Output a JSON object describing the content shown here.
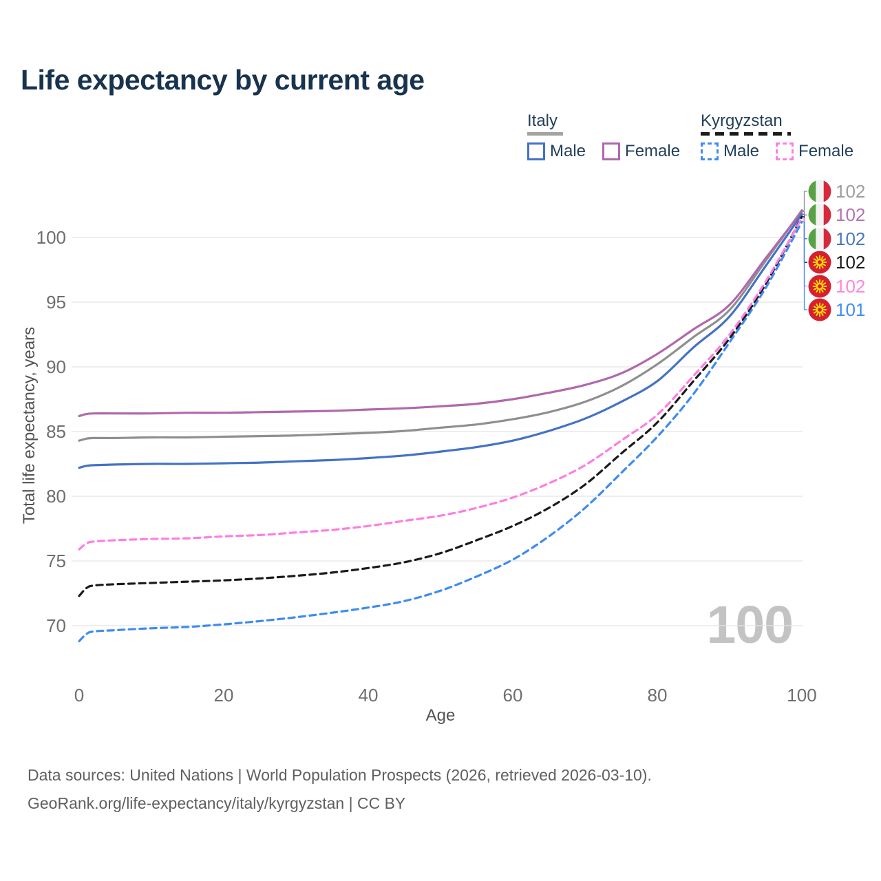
{
  "title": "Life expectancy by current age",
  "watermark_age": "100",
  "legend": {
    "groups": [
      {
        "name": "Italy",
        "line_style": "solid",
        "underline_color": "#A3A3A3",
        "items": [
          {
            "label": "Male",
            "color": "#4472C4"
          },
          {
            "label": "Female",
            "color": "#B168AB"
          }
        ]
      },
      {
        "name": "Kyrgyzstan",
        "line_style": "dashed",
        "underline_color": "#1B1B1B",
        "items": [
          {
            "label": "Male",
            "color": "#3D8BF5"
          },
          {
            "label": "Female",
            "color": "#FF7DE1"
          }
        ]
      }
    ]
  },
  "axes": {
    "x": {
      "label": "Age",
      "ticks": [
        "0",
        "20",
        "40",
        "60",
        "80",
        "100"
      ]
    },
    "y": {
      "label": "Total life expectancy, years",
      "ticks": [
        "70",
        "75",
        "80",
        "85",
        "90",
        "95",
        "100"
      ]
    }
  },
  "chart_data": {
    "type": "line",
    "title": "Life expectancy by current age",
    "xlabel": "Age",
    "ylabel": "Total life expectancy, years",
    "xlim": [
      0,
      100
    ],
    "ylim": [
      67,
      103.5
    ],
    "grid": "horizontal",
    "legend_position": "top-right",
    "series": [
      {
        "id": "italy-both",
        "country": "Italy",
        "sex": "Both sexes",
        "flag": "italy",
        "color": "#8F8F8F",
        "dashed": false,
        "end_label": "102",
        "end_label_color": "#9E9E9E",
        "points": [
          [
            0,
            84.3
          ],
          [
            1,
            84.45
          ],
          [
            2,
            84.5
          ],
          [
            5,
            84.5
          ],
          [
            10,
            84.55
          ],
          [
            15,
            84.55
          ],
          [
            20,
            84.6
          ],
          [
            25,
            84.65
          ],
          [
            30,
            84.7
          ],
          [
            35,
            84.8
          ],
          [
            40,
            84.9
          ],
          [
            45,
            85.05
          ],
          [
            50,
            85.3
          ],
          [
            55,
            85.55
          ],
          [
            60,
            85.95
          ],
          [
            65,
            86.5
          ],
          [
            70,
            87.3
          ],
          [
            75,
            88.5
          ],
          [
            80,
            90.2
          ],
          [
            85,
            92.3
          ],
          [
            90,
            94.4
          ],
          [
            95,
            98.2
          ],
          [
            100,
            102.1
          ]
        ]
      },
      {
        "id": "italy-female",
        "country": "Italy",
        "sex": "Female",
        "flag": "italy",
        "color": "#B168AB",
        "dashed": false,
        "end_label": "102",
        "end_label_color": "#B473AE",
        "points": [
          [
            0,
            86.2
          ],
          [
            1,
            86.35
          ],
          [
            2,
            86.4
          ],
          [
            5,
            86.4
          ],
          [
            10,
            86.4
          ],
          [
            15,
            86.45
          ],
          [
            20,
            86.45
          ],
          [
            25,
            86.5
          ],
          [
            30,
            86.55
          ],
          [
            35,
            86.6
          ],
          [
            40,
            86.7
          ],
          [
            45,
            86.8
          ],
          [
            50,
            86.95
          ],
          [
            55,
            87.15
          ],
          [
            60,
            87.5
          ],
          [
            65,
            88.0
          ],
          [
            70,
            88.6
          ],
          [
            75,
            89.5
          ],
          [
            80,
            91.0
          ],
          [
            85,
            92.9
          ],
          [
            90,
            94.8
          ],
          [
            95,
            98.4
          ],
          [
            100,
            102.0
          ]
        ]
      },
      {
        "id": "italy-male",
        "country": "Italy",
        "sex": "Male",
        "flag": "italy",
        "color": "#4472C4",
        "dashed": false,
        "end_label": "102",
        "end_label_color": "#4A78C2",
        "points": [
          [
            0,
            82.2
          ],
          [
            1,
            82.35
          ],
          [
            2,
            82.4
          ],
          [
            5,
            82.45
          ],
          [
            10,
            82.5
          ],
          [
            15,
            82.5
          ],
          [
            20,
            82.55
          ],
          [
            25,
            82.6
          ],
          [
            30,
            82.7
          ],
          [
            35,
            82.8
          ],
          [
            40,
            82.95
          ],
          [
            45,
            83.15
          ],
          [
            50,
            83.45
          ],
          [
            55,
            83.8
          ],
          [
            60,
            84.3
          ],
          [
            65,
            85.05
          ],
          [
            70,
            86.0
          ],
          [
            75,
            87.3
          ],
          [
            80,
            88.9
          ],
          [
            85,
            91.5
          ],
          [
            90,
            93.9
          ],
          [
            95,
            97.8
          ],
          [
            100,
            101.8
          ]
        ]
      },
      {
        "id": "kyrgyzstan-both",
        "country": "Kyrgyzstan",
        "sex": "Both sexes",
        "flag": "kyrgyzstan",
        "color": "#1B1B1B",
        "dashed": true,
        "end_label": "102",
        "end_label_color": "#1C1C1C",
        "points": [
          [
            0,
            72.3
          ],
          [
            1,
            72.9
          ],
          [
            2,
            73.1
          ],
          [
            5,
            73.2
          ],
          [
            10,
            73.3
          ],
          [
            15,
            73.4
          ],
          [
            20,
            73.5
          ],
          [
            25,
            73.65
          ],
          [
            30,
            73.85
          ],
          [
            35,
            74.1
          ],
          [
            40,
            74.45
          ],
          [
            45,
            74.9
          ],
          [
            50,
            75.6
          ],
          [
            55,
            76.6
          ],
          [
            60,
            77.7
          ],
          [
            65,
            79.1
          ],
          [
            70,
            80.9
          ],
          [
            75,
            83.3
          ],
          [
            80,
            85.7
          ],
          [
            85,
            88.9
          ],
          [
            90,
            92.2
          ],
          [
            95,
            96.4
          ],
          [
            100,
            101.6
          ]
        ]
      },
      {
        "id": "kyrgyzstan-female",
        "country": "Kyrgyzstan",
        "sex": "Female",
        "flag": "kyrgyzstan",
        "color": "#FF7DE1",
        "dashed": true,
        "end_label": "102",
        "end_label_color": "#FF85E0",
        "points": [
          [
            0,
            75.9
          ],
          [
            1,
            76.35
          ],
          [
            2,
            76.5
          ],
          [
            5,
            76.6
          ],
          [
            10,
            76.7
          ],
          [
            15,
            76.75
          ],
          [
            20,
            76.9
          ],
          [
            25,
            77.0
          ],
          [
            30,
            77.2
          ],
          [
            35,
            77.4
          ],
          [
            40,
            77.7
          ],
          [
            45,
            78.1
          ],
          [
            50,
            78.5
          ],
          [
            55,
            79.1
          ],
          [
            60,
            79.9
          ],
          [
            65,
            81.0
          ],
          [
            70,
            82.4
          ],
          [
            75,
            84.3
          ],
          [
            80,
            86.3
          ],
          [
            85,
            89.3
          ],
          [
            90,
            92.5
          ],
          [
            95,
            96.6
          ],
          [
            100,
            101.5
          ]
        ]
      },
      {
        "id": "kyrgyzstan-male",
        "country": "Kyrgyzstan",
        "sex": "Male",
        "flag": "kyrgyzstan",
        "color": "#3D8BF5",
        "dashed": true,
        "end_label": "101",
        "end_label_color": "#3F8DF5",
        "points": [
          [
            0,
            68.8
          ],
          [
            1,
            69.35
          ],
          [
            2,
            69.55
          ],
          [
            5,
            69.65
          ],
          [
            10,
            69.8
          ],
          [
            15,
            69.9
          ],
          [
            20,
            70.1
          ],
          [
            25,
            70.35
          ],
          [
            30,
            70.65
          ],
          [
            35,
            71.0
          ],
          [
            40,
            71.4
          ],
          [
            45,
            71.9
          ],
          [
            50,
            72.7
          ],
          [
            55,
            73.8
          ],
          [
            60,
            75.1
          ],
          [
            65,
            76.9
          ],
          [
            70,
            79.1
          ],
          [
            75,
            81.8
          ],
          [
            80,
            84.6
          ],
          [
            85,
            87.9
          ],
          [
            90,
            91.9
          ],
          [
            95,
            96.1
          ],
          [
            100,
            101.2
          ]
        ]
      }
    ]
  },
  "footer": {
    "line1": "Data sources: United Nations | World Population Prospects (2026, retrieved 2026-03-10).",
    "line2": "GeoRank.org/life-expectancy/italy/kyrgyzstan | CC BY"
  }
}
